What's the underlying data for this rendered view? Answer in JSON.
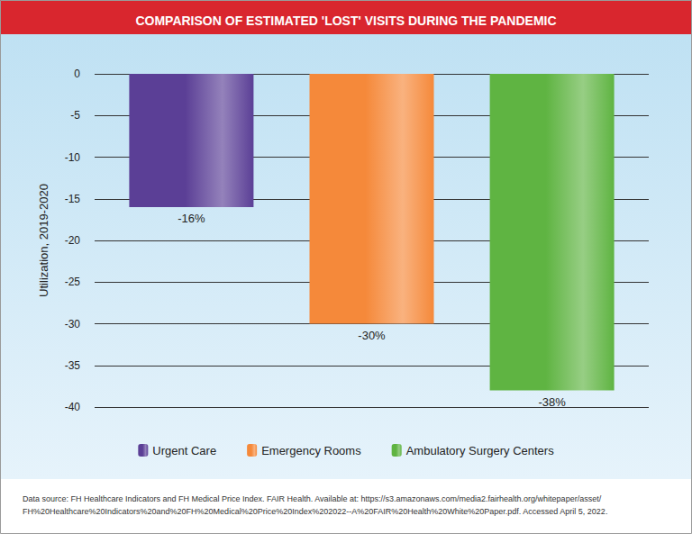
{
  "chart_data": {
    "type": "bar",
    "title": "COMPARISON OF ESTIMATED 'LOST' VISITS DURING THE PANDEMIC",
    "y_label": "Utilization, 2019-2020",
    "categories": [
      null
    ],
    "series": [
      {
        "name": "Urgent Care",
        "color": "#5b3f96",
        "values": [
          -16
        ],
        "value_labels": [
          "-16%"
        ]
      },
      {
        "name": "Emergency Rooms",
        "color": "#f5893a",
        "values": [
          -30
        ],
        "value_labels": [
          "-30%"
        ]
      },
      {
        "name": "Ambulatory Surgery Centers",
        "color": "#5fb442",
        "values": [
          -38
        ],
        "value_labels": [
          "-38%"
        ]
      }
    ],
    "ylim": [
      -40,
      0
    ],
    "yticks": [
      -40,
      -35,
      -30,
      -25,
      -20,
      -15,
      -10,
      -5,
      0
    ],
    "grid": true,
    "data_labels": true,
    "legend": "bottom",
    "tick_labels": "y",
    "source": "Data source: FH Healthcare Indicators and FH Medical Price Index. FAIR Health. Available at: https://s3.amazonaws.com/media2.fairhealth.org/whitepaper/asset/\nFH%20Healthcare%20Indicators%20and%20FH%20Medical%20Price%20Index%202022--A%20FAIR%20Health%20White%20Paper.pdf. Accessed April 5, 2022."
  }
}
